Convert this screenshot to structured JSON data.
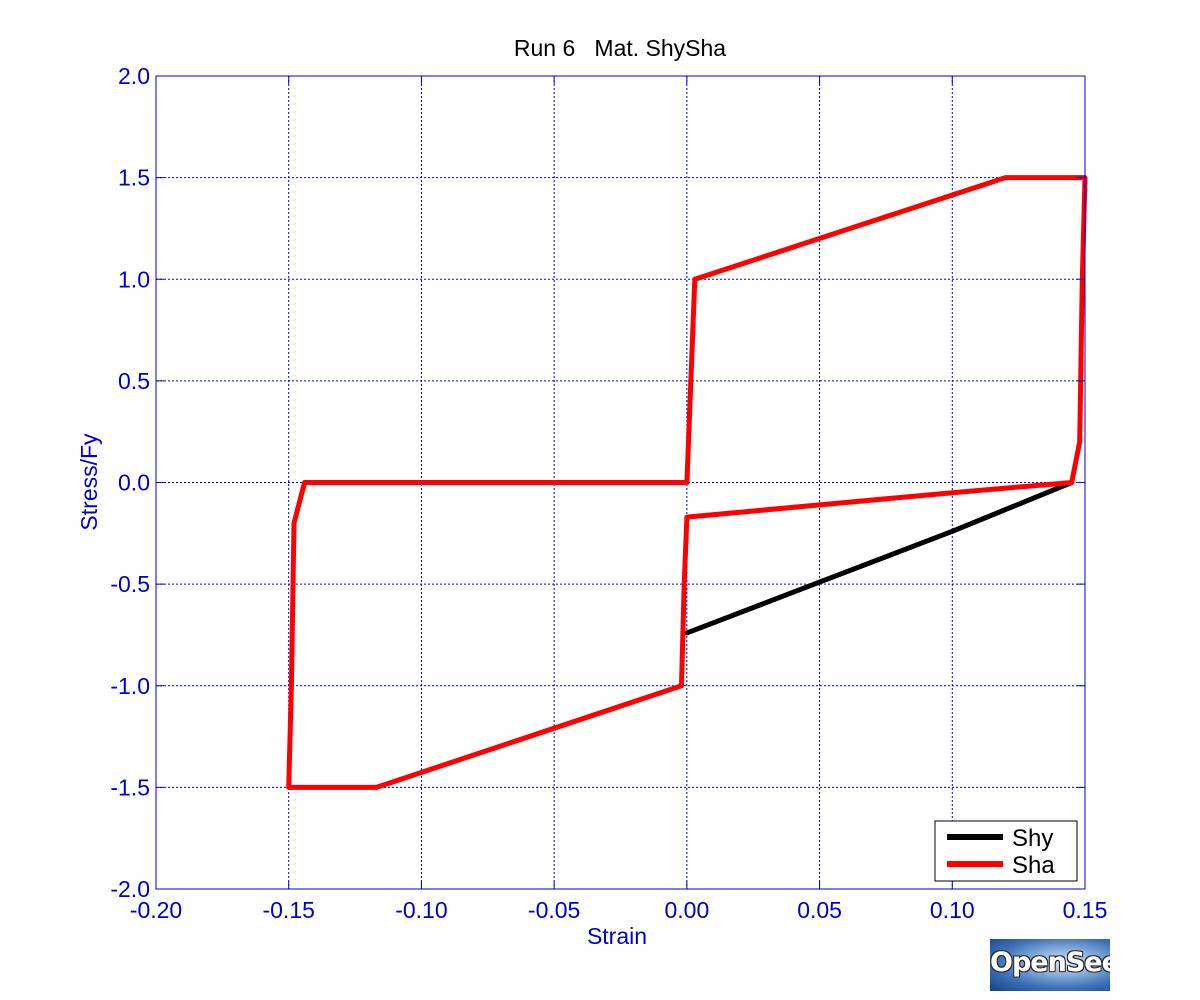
{
  "chart_data": {
    "type": "line",
    "title": "Run 6   Mat. ShySha",
    "xlabel": "Strain",
    "ylabel": "Stress/Fy",
    "xlim": [
      -0.2,
      0.15
    ],
    "ylim": [
      -2.0,
      2.0
    ],
    "xticks": [
      -0.2,
      -0.15,
      -0.1,
      -0.05,
      0.0,
      0.05,
      0.1,
      0.15
    ],
    "yticks": [
      -2.0,
      -1.5,
      -1.0,
      -0.5,
      0.0,
      0.5,
      1.0,
      1.5,
      2.0
    ],
    "xtick_labels": [
      "-0.20",
      "-0.15",
      "-0.10",
      "-0.05",
      "0.00",
      "0.05",
      "0.10",
      "0.15"
    ],
    "ytick_labels": [
      "-2.0",
      "-1.5",
      "-1.0",
      "-0.5",
      "0.0",
      "0.5",
      "1.0",
      "1.5",
      "2.0"
    ],
    "grid": true,
    "legend_position": "bottom-right",
    "series": [
      {
        "name": "Shy",
        "color": "#000000",
        "points": [
          [
            0.0,
            -0.74
          ],
          [
            0.05,
            -0.49
          ],
          [
            0.1,
            -0.24
          ],
          [
            0.145,
            0.0
          ]
        ]
      },
      {
        "name": "Sha",
        "color": "#ff0000",
        "points": [
          [
            0.0,
            0.0
          ],
          [
            0.003,
            1.0
          ],
          [
            0.12,
            1.5
          ],
          [
            0.15,
            1.5
          ],
          [
            0.149,
            1.0
          ],
          [
            0.148,
            0.2
          ],
          [
            0.145,
            0.0
          ],
          [
            0.1,
            -0.05
          ],
          [
            0.05,
            -0.11
          ],
          [
            0.0,
            -0.17
          ],
          [
            -0.001,
            -0.5
          ],
          [
            -0.002,
            -1.0
          ],
          [
            -0.117,
            -1.5
          ],
          [
            -0.15,
            -1.5
          ],
          [
            -0.149,
            -1.0
          ],
          [
            -0.148,
            -0.2
          ],
          [
            -0.144,
            0.0
          ],
          [
            0.0,
            0.0
          ]
        ]
      }
    ]
  },
  "logo": {
    "text": "OpenSees"
  }
}
